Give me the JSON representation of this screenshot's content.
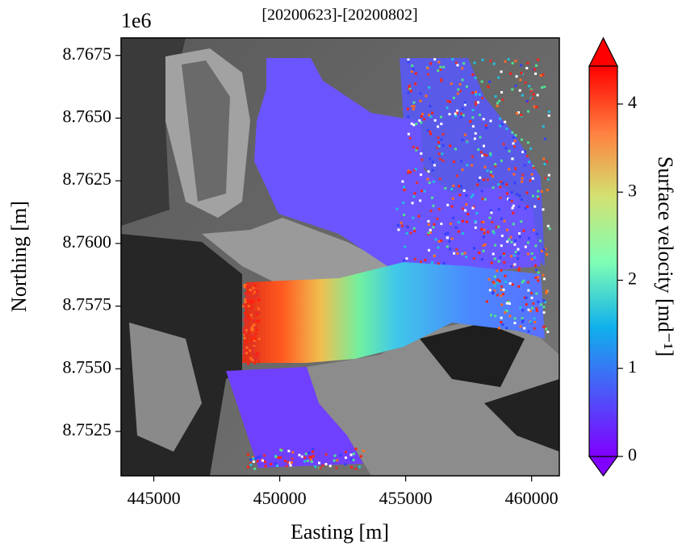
{
  "chart_data": {
    "type": "image",
    "title": "[20200623]-[20200802]",
    "y_offset_label": "1e6",
    "xlabel": "Easting [m]",
    "ylabel": "Northing [m]",
    "xlim": [
      443700,
      461100
    ],
    "ylim": [
      8750730,
      8768200
    ],
    "xticks": [
      445000,
      450000,
      455000,
      460000
    ],
    "yticks": [
      {
        "value": 8752500,
        "label": "8.7525"
      },
      {
        "value": 8755000,
        "label": "8.7550"
      },
      {
        "value": 8757500,
        "label": "8.7575"
      },
      {
        "value": 8760000,
        "label": "8.7600"
      },
      {
        "value": 8762500,
        "label": "8.7625"
      },
      {
        "value": 8765000,
        "label": "8.7650"
      },
      {
        "value": 8767500,
        "label": "8.7675"
      }
    ],
    "colorbar": {
      "label": "Surface velocity [md⁻¹]",
      "clim": [
        0,
        4.43
      ],
      "ticks": [
        0,
        1,
        2,
        3,
        4
      ],
      "colormap": "rainbow",
      "extend": "both"
    }
  }
}
